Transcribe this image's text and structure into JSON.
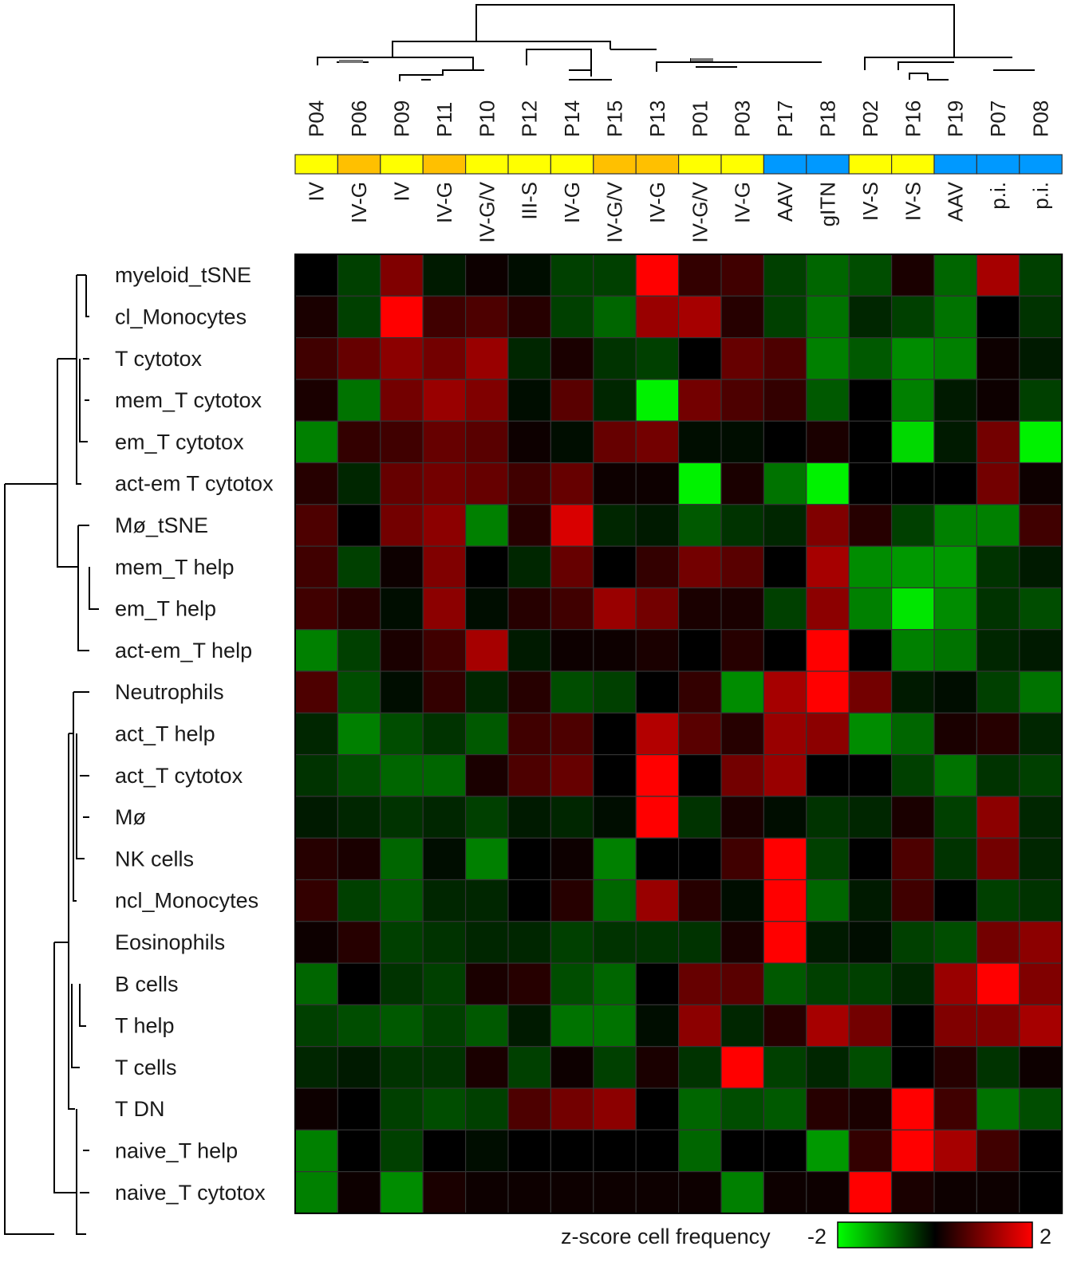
{
  "chart_data": {
    "type": "heatmap",
    "title": "",
    "columns": [
      "P04",
      "P06",
      "P09",
      "P11",
      "P10",
      "P12",
      "P14",
      "P15",
      "P13",
      "P01",
      "P03",
      "P17",
      "P18",
      "P02",
      "P16",
      "P19",
      "P07",
      "P08"
    ],
    "column_groups": [
      "IV",
      "IV-G",
      "IV",
      "IV-G",
      "IV-G/V",
      "III-S",
      "IV-G",
      "IV-G/V",
      "IV-G",
      "IV-G/V",
      "IV-G",
      "AAV",
      "gITN",
      "IV-S",
      "IV-S",
      "AAV",
      "p.i.",
      "p.i."
    ],
    "column_annotation_colors": [
      "#ffff00",
      "#ffc000",
      "#ffff00",
      "#ffc000",
      "#ffff00",
      "#ffff00",
      "#ffff00",
      "#ffc000",
      "#ffc000",
      "#ffff00",
      "#ffff00",
      "#0099ff",
      "#0099ff",
      "#ffff00",
      "#ffff00",
      "#0099ff",
      "#0099ff",
      "#0099ff"
    ],
    "rows": [
      "myeloid_tSNE",
      "cl_Monocytes",
      "T cytotox",
      "mem_T cytotox",
      "em_T cytotox",
      "act-em T cytotox",
      "Mø_tSNE",
      "mem_T help",
      "em_T help",
      "act-em_T help",
      "Neutrophils",
      "act_T help",
      "act_T cytotox",
      "Mø",
      "NK cells",
      "ncl_Monocytes",
      "Eosinophils",
      "B cells",
      "T help",
      "T cells",
      "T DN",
      "naive_T help",
      "naive_T cytotox"
    ],
    "values": [
      [
        0.0,
        -0.5,
        1.0,
        -0.2,
        0.1,
        -0.1,
        -0.5,
        -0.5,
        2.0,
        0.4,
        0.5,
        -0.5,
        -0.8,
        -0.6,
        0.2,
        -0.8,
        1.3,
        -0.5
      ],
      [
        0.2,
        -0.5,
        2.0,
        0.5,
        0.6,
        0.3,
        -0.5,
        -0.8,
        1.2,
        1.3,
        0.3,
        -0.5,
        -0.9,
        -0.3,
        -0.5,
        -0.9,
        0.0,
        -0.4
      ],
      [
        0.5,
        0.8,
        1.1,
        0.9,
        1.2,
        -0.3,
        0.2,
        -0.4,
        -0.5,
        0.0,
        0.8,
        0.6,
        -1.0,
        -0.7,
        -1.1,
        -1.0,
        0.1,
        -0.2
      ],
      [
        0.2,
        -0.9,
        0.9,
        1.2,
        1.0,
        -0.1,
        0.7,
        -0.3,
        -1.9,
        0.9,
        0.6,
        0.4,
        -0.7,
        -0.0,
        -1.0,
        -0.2,
        0.1,
        -0.5
      ],
      [
        -1.0,
        0.4,
        0.5,
        0.8,
        0.7,
        0.1,
        -0.1,
        0.8,
        0.9,
        -0.1,
        -0.1,
        0.0,
        0.2,
        -0.0,
        -1.7,
        -0.2,
        0.9,
        -1.9
      ],
      [
        0.3,
        -0.3,
        0.8,
        0.9,
        0.8,
        0.5,
        0.8,
        0.1,
        0.1,
        -1.9,
        0.2,
        -0.9,
        -1.9,
        0.0,
        0.0,
        0.0,
        0.9,
        0.1
      ],
      [
        0.6,
        0.0,
        0.9,
        1.1,
        -1.0,
        0.3,
        1.7,
        -0.3,
        -0.2,
        -0.7,
        -0.4,
        -0.3,
        1.0,
        0.3,
        -0.5,
        -1.0,
        -1.0,
        0.5
      ],
      [
        0.5,
        -0.5,
        0.1,
        1.0,
        0.0,
        -0.3,
        0.8,
        0.0,
        0.4,
        0.9,
        0.7,
        0.0,
        1.3,
        -1.1,
        -1.2,
        -1.2,
        -0.4,
        -0.2
      ],
      [
        0.5,
        0.3,
        -0.1,
        1.1,
        -0.1,
        0.3,
        0.5,
        1.2,
        0.9,
        0.2,
        0.2,
        -0.5,
        1.1,
        -1.0,
        -1.8,
        -1.1,
        -0.4,
        -0.6
      ],
      [
        -1.0,
        -0.5,
        0.2,
        0.5,
        1.3,
        -0.2,
        0.1,
        0.1,
        0.2,
        0.0,
        0.3,
        0.0,
        2.0,
        0.0,
        -1.0,
        -0.9,
        -0.3,
        -0.2
      ],
      [
        0.6,
        -0.6,
        -0.1,
        0.4,
        -0.3,
        0.3,
        -0.6,
        -0.5,
        0.0,
        0.4,
        -1.1,
        1.3,
        2.0,
        0.9,
        -0.2,
        -0.1,
        -0.5,
        -0.9
      ],
      [
        -0.3,
        -1.0,
        -0.6,
        -0.4,
        -0.7,
        0.5,
        0.6,
        0.0,
        1.4,
        0.7,
        0.3,
        1.2,
        1.1,
        -1.1,
        -0.8,
        0.2,
        0.3,
        -0.3
      ],
      [
        -0.4,
        -0.6,
        -0.8,
        -0.8,
        0.2,
        0.6,
        0.8,
        0.0,
        2.0,
        0.0,
        0.9,
        1.2,
        0.0,
        0.0,
        -0.5,
        -0.9,
        -0.4,
        -0.5
      ],
      [
        -0.2,
        -0.3,
        -0.4,
        -0.3,
        -0.5,
        -0.2,
        -0.3,
        -0.1,
        2.0,
        -0.4,
        0.2,
        -0.1,
        -0.4,
        -0.3,
        0.2,
        -0.5,
        1.1,
        -0.3
      ],
      [
        0.3,
        0.2,
        -0.8,
        -0.1,
        -1.0,
        0.0,
        0.1,
        -1.0,
        0.0,
        0.0,
        0.5,
        2.0,
        -0.5,
        0.0,
        0.6,
        -0.4,
        0.9,
        -0.3
      ],
      [
        0.4,
        -0.5,
        -0.7,
        -0.3,
        -0.3,
        0.0,
        0.3,
        -0.8,
        1.2,
        0.3,
        -0.1,
        2.0,
        -0.8,
        -0.2,
        0.5,
        0.0,
        -0.5,
        -0.4
      ],
      [
        0.1,
        0.3,
        -0.5,
        -0.4,
        -0.3,
        -0.3,
        -0.5,
        -0.4,
        -0.4,
        -0.4,
        0.2,
        2.0,
        -0.2,
        -0.1,
        -0.5,
        -0.6,
        0.9,
        1.1
      ],
      [
        -0.8,
        0.0,
        -0.4,
        -0.5,
        0.2,
        0.3,
        -0.6,
        -0.8,
        0.0,
        0.8,
        0.7,
        -0.7,
        -0.5,
        -0.5,
        -0.3,
        1.2,
        2.0,
        1.0
      ],
      [
        -0.5,
        -0.6,
        -0.7,
        -0.5,
        -0.7,
        -0.2,
        -0.9,
        -0.9,
        -0.1,
        1.1,
        -0.3,
        0.3,
        1.3,
        0.9,
        0.0,
        1.0,
        1.0,
        1.3
      ],
      [
        -0.3,
        -0.2,
        -0.4,
        -0.4,
        0.2,
        -0.5,
        0.1,
        -0.5,
        0.2,
        -0.4,
        2.0,
        -0.5,
        -0.3,
        -0.6,
        0.0,
        0.3,
        -0.4,
        0.1
      ],
      [
        0.1,
        0.0,
        -0.5,
        -0.6,
        -0.5,
        0.6,
        0.9,
        1.1,
        0.0,
        -0.8,
        -0.6,
        -0.7,
        0.3,
        0.2,
        2.0,
        0.5,
        -0.9,
        -0.6
      ],
      [
        -1.0,
        0.0,
        -0.5,
        0.0,
        -0.1,
        0.0,
        0.0,
        0.0,
        0.0,
        -0.8,
        0.0,
        0.0,
        -1.2,
        0.4,
        2.0,
        1.3,
        0.5,
        0.0
      ],
      [
        -1.0,
        0.1,
        -1.1,
        0.2,
        0.1,
        0.1,
        0.1,
        0.1,
        0.1,
        0.1,
        -1.0,
        0.1,
        0.1,
        2.0,
        0.2,
        0.1,
        0.1,
        0.0
      ]
    ],
    "legend": {
      "label": "z-score cell frequency",
      "min": -2,
      "max": 2,
      "min_label": "-2",
      "max_label": "2"
    },
    "colors": {
      "low": "#00ff00",
      "mid": "#000000",
      "high": "#ff0000"
    }
  }
}
